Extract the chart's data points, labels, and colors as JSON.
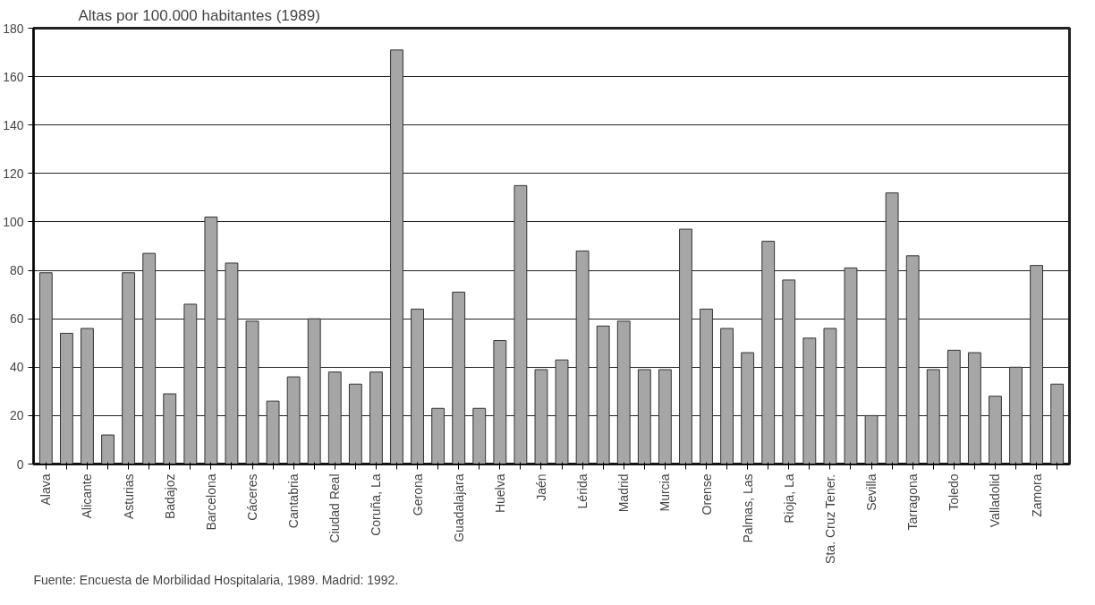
{
  "chart_data": {
    "type": "bar",
    "title": "Altas por 100.000 habitantes (1989)",
    "categories": [
      "Alava",
      null,
      "Alicante",
      null,
      "Asturias",
      null,
      "Badajoz",
      null,
      "Barcelona",
      null,
      "Cáceres",
      null,
      "Cantabria",
      null,
      "Ciudad Real",
      null,
      "Coruña, La",
      null,
      "Gerona",
      null,
      "Guadalajara",
      null,
      "Huelva",
      null,
      "Jaén",
      null,
      "Lérida",
      null,
      "Madrid",
      null,
      "Murcia",
      null,
      "Orense",
      null,
      "Palmas, Las",
      null,
      "Rioja, La",
      null,
      "Sta. Cruz Tener.",
      null,
      "Sevilla",
      null,
      "Tarragona",
      null,
      "Toledo",
      null,
      "Valladolid",
      null,
      "Zamora",
      null
    ],
    "values": [
      79,
      54,
      56,
      12,
      79,
      87,
      29,
      66,
      102,
      83,
      59,
      26,
      36,
      60,
      38,
      33,
      38,
      171,
      64,
      23,
      71,
      23,
      51,
      115,
      39,
      43,
      88,
      57,
      59,
      39,
      39,
      97,
      64,
      56,
      46,
      92,
      76,
      52,
      56,
      81,
      20,
      112,
      86,
      39,
      47,
      46,
      28,
      40,
      82,
      33
    ],
    "color": "#a6a6a6",
    "ylim": [
      0,
      180
    ],
    "yticks": [
      0,
      20,
      40,
      60,
      80,
      100,
      120,
      140,
      160,
      180
    ],
    "grid": "y",
    "annotations": [
      "Fuente: Encuesta de Morbilidad Hospitalaria, 1989. Madrid: 1992."
    ]
  }
}
